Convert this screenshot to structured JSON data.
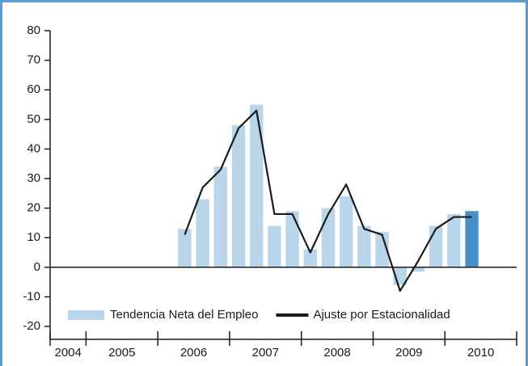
{
  "chart_data": {
    "type": "bar_line",
    "categories": [
      null,
      null,
      null,
      null,
      null,
      null,
      null,
      null,
      null,
      null,
      null,
      null,
      null,
      null,
      null,
      null,
      null,
      null,
      null,
      null,
      null,
      null,
      null,
      null,
      null,
      null
    ],
    "year_groups": [
      {
        "label": "2004",
        "quarters": 2
      },
      {
        "label": "2005",
        "quarters": 4
      },
      {
        "label": "2006",
        "quarters": 4
      },
      {
        "label": "2007",
        "quarters": 4
      },
      {
        "label": "2008",
        "quarters": 4
      },
      {
        "label": "2009",
        "quarters": 4
      },
      {
        "label": "2010",
        "quarters": 4
      }
    ],
    "series": [
      {
        "name": "Tendencia Neta del Empleo",
        "kind": "bar",
        "color": "#b8d5ea",
        "highlight": {
          "index": 23,
          "color": "#4a90c8"
        },
        "values": [
          null,
          null,
          null,
          null,
          null,
          null,
          null,
          13,
          23,
          34,
          48,
          55,
          14,
          19,
          6,
          20,
          24,
          14,
          12,
          -6,
          -1.5,
          14,
          18,
          19,
          null,
          null
        ]
      },
      {
        "name": "Ajuste por Estacionalidad",
        "kind": "line",
        "color": "#1a1a1a",
        "values": [
          null,
          null,
          null,
          null,
          null,
          null,
          null,
          11,
          27,
          33,
          47,
          53,
          18,
          18,
          5,
          18,
          28,
          13,
          11,
          -8,
          2,
          13,
          17,
          17,
          null,
          null
        ]
      }
    ],
    "ylim": [
      -20,
      80
    ],
    "yticks": [
      -20,
      -10,
      0,
      10,
      20,
      30,
      40,
      50,
      60,
      70,
      80
    ]
  }
}
